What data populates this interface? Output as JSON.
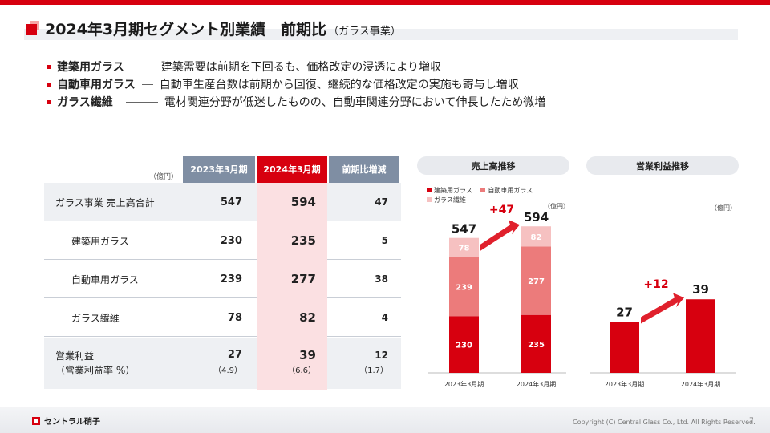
{
  "title": {
    "main": "2024年3月期セグメント別業績　前期比",
    "sub": "（ガラス事業）"
  },
  "bullets": [
    {
      "name": "建築用ガラス",
      "desc": "建築需要は前期を下回るも、価格改定の浸透により増収"
    },
    {
      "name": "自動車用ガラス",
      "desc": "自動車生産台数は前期から回復、継続的な価格改定の実施も寄与し増収"
    },
    {
      "name": "ガラス繊維",
      "desc": "電材関連分野が低迷したものの、自動車関連分野において伸長したため微増"
    }
  ],
  "table": {
    "unit": "（億円）",
    "headers": {
      "y2023": "2023年3月期",
      "y2024": "2024年3月期",
      "diff": "前期比増減"
    },
    "rows": [
      {
        "label": "ガラス事業 売上高合計",
        "y2023": "547",
        "y2024": "594",
        "diff": "47"
      },
      {
        "label": "建築用ガラス",
        "y2023": "230",
        "y2024": "235",
        "diff": "5"
      },
      {
        "label": "自動車用ガラス",
        "y2023": "239",
        "y2024": "277",
        "diff": "38"
      },
      {
        "label": "ガラス繊維",
        "y2023": "78",
        "y2024": "82",
        "diff": "4"
      }
    ],
    "op_row": {
      "label1": "営業利益",
      "label2": "（営業利益率 %）",
      "y2023": "27",
      "y2023_rate": "（4.9）",
      "y2024": "39",
      "y2024_rate": "（6.6）",
      "diff": "12",
      "diff_rate": "（1.7）"
    }
  },
  "sales_chart_title": "売上高推移",
  "op_chart_title": "営業利益推移",
  "colors": {
    "arch": "#d7000f",
    "auto": "#ec7b7b",
    "fiber": "#f6c1c1"
  },
  "chart_data": [
    {
      "type": "bar",
      "title": "売上高推移",
      "unit": "（億円）",
      "stacked": true,
      "categories": [
        "2023年3月期",
        "2024年3月期"
      ],
      "series": [
        {
          "name": "建築用ガラス",
          "values": [
            230,
            235
          ]
        },
        {
          "name": "自動車用ガラス",
          "values": [
            239,
            277
          ]
        },
        {
          "name": "ガラス繊維",
          "values": [
            78,
            82
          ]
        }
      ],
      "totals": [
        547,
        594
      ],
      "annotation": "+47",
      "ylim": [
        0,
        650
      ]
    },
    {
      "type": "bar",
      "title": "営業利益推移",
      "unit": "（億円）",
      "categories": [
        "2023年3月期",
        "2024年3月期"
      ],
      "values": [
        27,
        39
      ],
      "annotation": "+12",
      "ylim": [
        0,
        85
      ]
    }
  ],
  "footer": {
    "logo_text": "セントラル硝子",
    "copyright": "Copyright (C) Central Glass Co., Ltd. All Rights Reserved.",
    "page": "7"
  }
}
